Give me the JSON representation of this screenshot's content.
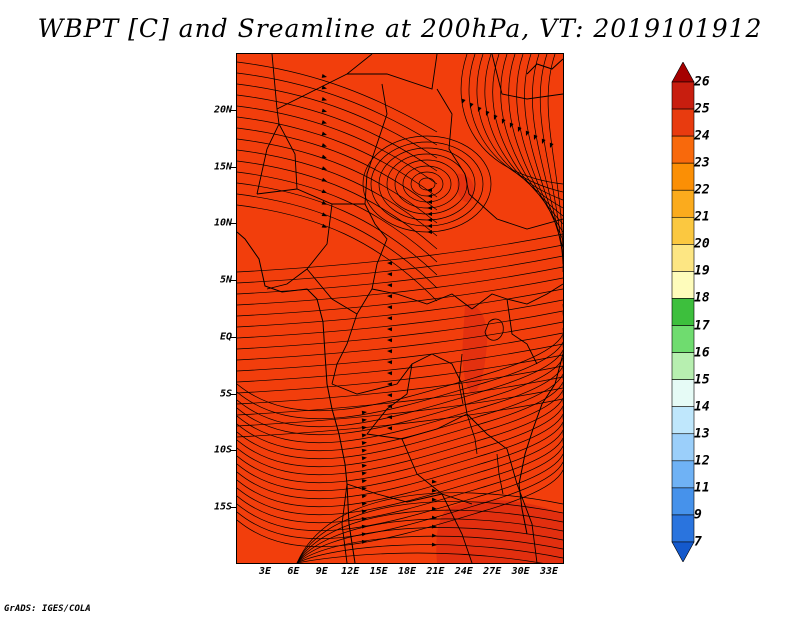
{
  "title": "WBPT [C] and Sreamline at 200hPa, VT: 2019101912",
  "credit": "GrADS: IGES/COLA",
  "map": {
    "region": "East Africa",
    "lat_labels": [
      "20N",
      "15N",
      "10N",
      "5N",
      "EQ",
      "5S",
      "10S",
      "15S"
    ],
    "lon_labels": [
      "3E",
      "6E",
      "9E",
      "12E",
      "15E",
      "18E",
      "21E",
      "24E",
      "27E",
      "30E",
      "33E"
    ],
    "field_base_color": "#f23e0c",
    "field_warm_color": "#d72612"
  },
  "colorbar": {
    "levels": [
      "26",
      "25",
      "24",
      "23",
      "22",
      "21",
      "20",
      "19",
      "18",
      "17",
      "16",
      "15",
      "14",
      "13",
      "12",
      "11",
      "9",
      "7"
    ],
    "colors": [
      "#a50000",
      "#c81e0f",
      "#e83b0f",
      "#f8690c",
      "#fb8f05",
      "#fbab1d",
      "#fbc840",
      "#fde683",
      "#fefcbb",
      "#3dbf3d",
      "#6fdc6f",
      "#b7efb0",
      "#e6fbf6",
      "#bfe7fc",
      "#9bcffa",
      "#6fb2f5",
      "#4692eb",
      "#2a74de",
      "#1459cc"
    ]
  }
}
